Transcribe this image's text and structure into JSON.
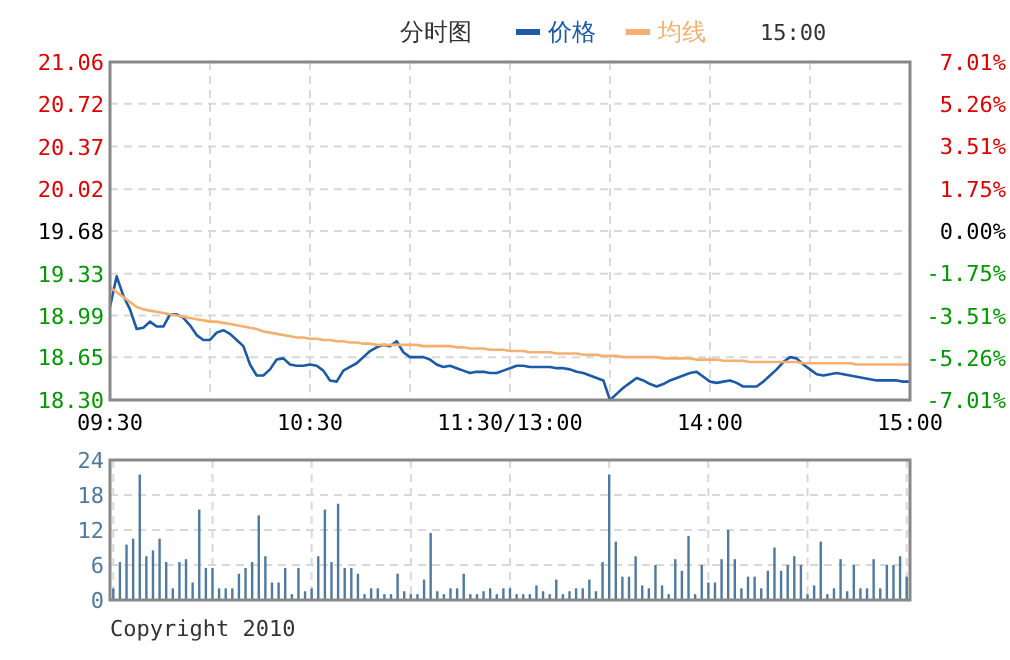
{
  "chart_data": [
    {
      "type": "line",
      "title": "分时图",
      "annotations": [
        "15:00"
      ],
      "legend": "top",
      "grid": true,
      "categories": [
        "09:30",
        null,
        null,
        null,
        null,
        null,
        null,
        null,
        null,
        null,
        null,
        null,
        null,
        null,
        null,
        null,
        null,
        null,
        null,
        null,
        null,
        null,
        null,
        null,
        null,
        null,
        null,
        null,
        null,
        null,
        "10:30",
        null,
        null,
        null,
        null,
        null,
        null,
        null,
        null,
        null,
        null,
        null,
        null,
        null,
        null,
        null,
        null,
        null,
        null,
        null,
        null,
        null,
        null,
        null,
        null,
        null,
        null,
        null,
        null,
        null,
        "11:30/13:00",
        null,
        null,
        null,
        null,
        null,
        null,
        null,
        null,
        null,
        null,
        null,
        null,
        null,
        null,
        null,
        null,
        null,
        null,
        null,
        null,
        null,
        null,
        null,
        null,
        null,
        null,
        null,
        null,
        null,
        "14:00",
        null,
        null,
        null,
        null,
        null,
        null,
        null,
        null,
        null,
        null,
        null,
        null,
        null,
        null,
        null,
        null,
        null,
        null,
        null,
        null,
        null,
        null,
        null,
        null,
        null,
        null,
        null,
        null,
        null,
        "15:00"
      ],
      "ylim": [
        18.3,
        21.06
      ],
      "yticks": [
        {
          "value": 21.06,
          "label": "21.06"
        },
        {
          "value": 20.72,
          "label": "20.72"
        },
        {
          "value": 20.37,
          "label": "20.37"
        },
        {
          "value": 20.02,
          "label": "20.02"
        },
        {
          "value": 19.68,
          "label": "19.68"
        },
        {
          "value": 19.33,
          "label": "19.33"
        },
        {
          "value": 18.99,
          "label": "18.99"
        },
        {
          "value": 18.65,
          "label": "18.65"
        },
        {
          "value": 18.3,
          "label": "18.30"
        }
      ],
      "y2lim": [
        -7.01,
        7.01
      ],
      "y2ticks": [
        {
          "value": 7.01,
          "label": "7.01%"
        },
        {
          "value": 5.26,
          "label": "5.26%"
        },
        {
          "value": 3.51,
          "label": "3.51%"
        },
        {
          "value": 1.75,
          "label": "1.75%"
        },
        {
          "value": 0,
          "label": "0.00%"
        },
        {
          "value": -1.75,
          "label": "-1.75%"
        },
        {
          "value": -3.51,
          "label": "-3.51%"
        },
        {
          "value": -5.26,
          "label": "-5.26%"
        },
        {
          "value": -7.01,
          "label": "-7.01%"
        }
      ],
      "series": [
        {
          "name": "价格",
          "color": "#1a5aa8",
          "values": [
            19.06,
            19.31,
            19.15,
            19.04,
            18.88,
            18.89,
            18.94,
            18.9,
            18.9,
            19.0,
            19.0,
            18.97,
            18.91,
            18.83,
            18.79,
            18.79,
            18.85,
            18.87,
            18.84,
            18.79,
            18.74,
            18.59,
            18.5,
            18.5,
            18.55,
            18.63,
            18.64,
            18.59,
            18.58,
            18.58,
            18.59,
            18.58,
            18.54,
            18.46,
            18.45,
            18.54,
            18.57,
            18.6,
            18.65,
            18.7,
            18.73,
            18.75,
            18.74,
            18.78,
            18.69,
            18.65,
            18.65,
            18.65,
            18.63,
            18.59,
            18.57,
            18.58,
            18.56,
            18.54,
            18.52,
            18.53,
            18.53,
            18.52,
            18.52,
            18.54,
            18.56,
            18.58,
            18.58,
            18.57,
            18.57,
            18.57,
            18.57,
            18.56,
            18.56,
            18.55,
            18.53,
            18.52,
            18.5,
            18.48,
            18.46,
            18.3,
            18.35,
            18.4,
            18.44,
            18.48,
            18.46,
            18.43,
            18.41,
            18.43,
            18.46,
            18.48,
            18.5,
            18.52,
            18.53,
            18.49,
            18.45,
            18.44,
            18.45,
            18.46,
            18.44,
            18.41,
            18.41,
            18.41,
            18.45,
            18.5,
            18.55,
            18.61,
            18.65,
            18.64,
            18.59,
            18.55,
            18.51,
            18.5,
            18.51,
            18.52,
            18.51,
            18.5,
            18.49,
            18.48,
            18.47,
            18.46,
            18.46,
            18.46,
            18.46,
            18.45,
            18.45
          ]
        },
        {
          "name": "均线",
          "color": "#f5b070",
          "values": [
            19.22,
            19.18,
            19.14,
            19.1,
            19.06,
            19.04,
            19.03,
            19.02,
            19.01,
            19.0,
            18.99,
            18.98,
            18.97,
            18.96,
            18.95,
            18.94,
            18.94,
            18.93,
            18.92,
            18.91,
            18.9,
            18.89,
            18.88,
            18.86,
            18.85,
            18.84,
            18.83,
            18.82,
            18.81,
            18.81,
            18.8,
            18.8,
            18.79,
            18.79,
            18.78,
            18.78,
            18.77,
            18.77,
            18.76,
            18.76,
            18.75,
            18.75,
            18.75,
            18.75,
            18.75,
            18.75,
            18.75,
            18.74,
            18.74,
            18.74,
            18.74,
            18.74,
            18.73,
            18.73,
            18.72,
            18.72,
            18.72,
            18.71,
            18.71,
            18.71,
            18.7,
            18.7,
            18.7,
            18.69,
            18.69,
            18.69,
            18.69,
            18.68,
            18.68,
            18.68,
            18.68,
            18.67,
            18.67,
            18.67,
            18.66,
            18.66,
            18.66,
            18.65,
            18.65,
            18.65,
            18.65,
            18.65,
            18.65,
            18.64,
            18.64,
            18.64,
            18.64,
            18.64,
            18.63,
            18.63,
            18.63,
            18.63,
            18.62,
            18.62,
            18.62,
            18.62,
            18.61,
            18.61,
            18.61,
            18.61,
            18.61,
            18.61,
            18.61,
            18.61,
            18.6,
            18.6,
            18.6,
            18.6,
            18.6,
            18.6,
            18.6,
            18.6,
            18.59,
            18.59,
            18.59,
            18.59,
            18.59,
            18.59,
            18.59,
            18.59,
            18.59
          ]
        }
      ]
    },
    {
      "type": "bar",
      "annotations": [
        "Copyright 2010"
      ],
      "grid": true,
      "categories": [
        null,
        null,
        null,
        null,
        null,
        null,
        null,
        null,
        null,
        null,
        null,
        null,
        null,
        null,
        null,
        null,
        null,
        null,
        null,
        null,
        null,
        null,
        null,
        null,
        null,
        null,
        null,
        null,
        null,
        null,
        null,
        null,
        null,
        null,
        null,
        null,
        null,
        null,
        null,
        null,
        null,
        null,
        null,
        null,
        null,
        null,
        null,
        null,
        null,
        null,
        null,
        null,
        null,
        null,
        null,
        null,
        null,
        null,
        null,
        null,
        null,
        null,
        null,
        null,
        null,
        null,
        null,
        null,
        null,
        null,
        null,
        null,
        null,
        null,
        null,
        null,
        null,
        null,
        null,
        null,
        null,
        null,
        null,
        null,
        null,
        null,
        null,
        null,
        null,
        null,
        null,
        null,
        null,
        null,
        null,
        null,
        null,
        null,
        null,
        null,
        null,
        null,
        null,
        null,
        null,
        null,
        null,
        null,
        null,
        null,
        null,
        null,
        null,
        null,
        null,
        null,
        null,
        null,
        null,
        null,
        null
      ],
      "ylim": [
        0,
        24
      ],
      "yticks": [
        0,
        6,
        12,
        18,
        24
      ],
      "series": [
        {
          "color": "#4f7aa0",
          "values": [
            2,
            6.5,
            9.5,
            10.5,
            21.5,
            7.5,
            8.5,
            10.5,
            6.5,
            2,
            6.5,
            7,
            3,
            15.5,
            5.5,
            5.5,
            2,
            2,
            2,
            4.5,
            5.5,
            6.5,
            14.5,
            7.5,
            3,
            3,
            5.5,
            1,
            5.5,
            1.5,
            2,
            7.5,
            15.5,
            6.5,
            16.5,
            5.5,
            5.5,
            4.5,
            1,
            2,
            2,
            1,
            1,
            4.5,
            1.5,
            1,
            1,
            3.5,
            11.5,
            1.5,
            1,
            2,
            2,
            4.5,
            1,
            1,
            1.5,
            2,
            1,
            2,
            2,
            1,
            1,
            1,
            2.5,
            1.5,
            1,
            3.5,
            1,
            1.5,
            2,
            2,
            3.5,
            1.5,
            6.5,
            21.5,
            10,
            4,
            4,
            7.5,
            2.5,
            2,
            6,
            2.5,
            1,
            7,
            5,
            11,
            1,
            6,
            3,
            3,
            7,
            12,
            7,
            2,
            4,
            4,
            2,
            5,
            9,
            5,
            6,
            7.5,
            6,
            1,
            2.5,
            10,
            1,
            2,
            7,
            1.5,
            6,
            2,
            2,
            7,
            2,
            6,
            6,
            7.5,
            4
          ]
        }
      ]
    }
  ]
}
